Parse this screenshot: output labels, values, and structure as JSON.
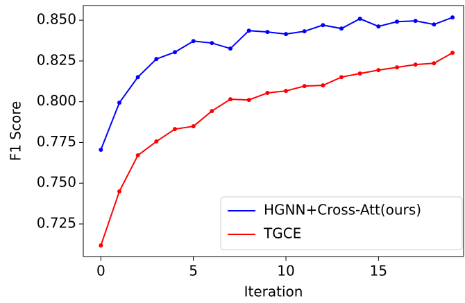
{
  "chart_data": {
    "type": "line",
    "xlabel": "Iteration",
    "ylabel": "F1 Score",
    "x": [
      0,
      1,
      2,
      3,
      4,
      5,
      6,
      7,
      8,
      9,
      10,
      11,
      12,
      13,
      14,
      15,
      16,
      17,
      18,
      19
    ],
    "series": [
      {
        "name": "HGNN+Cross-Att(ours)",
        "color": "#0000ff",
        "values": [
          0.7705,
          0.7994,
          0.8151,
          0.8262,
          0.8304,
          0.8372,
          0.836,
          0.8326,
          0.8436,
          0.8428,
          0.8415,
          0.8432,
          0.847,
          0.8449,
          0.8509,
          0.8462,
          0.8491,
          0.8496,
          0.8474,
          0.8517
        ]
      },
      {
        "name": "TGCE",
        "color": "#ff0000",
        "values": [
          0.7118,
          0.745,
          0.7671,
          0.7756,
          0.7832,
          0.7849,
          0.7943,
          0.8015,
          0.8011,
          0.8054,
          0.8066,
          0.8096,
          0.81,
          0.8151,
          0.8173,
          0.8194,
          0.8211,
          0.8228,
          0.8236,
          0.83
        ]
      }
    ],
    "xlim": [
      -0.95,
      19.6
    ],
    "xticks": [
      0,
      5,
      10,
      15
    ],
    "ylim": [
      0.705,
      0.859
    ],
    "yticks": [
      {
        "value": 0.725,
        "label": "0.725"
      },
      {
        "value": 0.75,
        "label": "0.750"
      },
      {
        "value": 0.775,
        "label": "0.775"
      },
      {
        "value": 0.8,
        "label": "0.800"
      },
      {
        "value": 0.825,
        "label": "0.825"
      },
      {
        "value": 0.85,
        "label": "0.850"
      }
    ],
    "legend": "lower right"
  }
}
